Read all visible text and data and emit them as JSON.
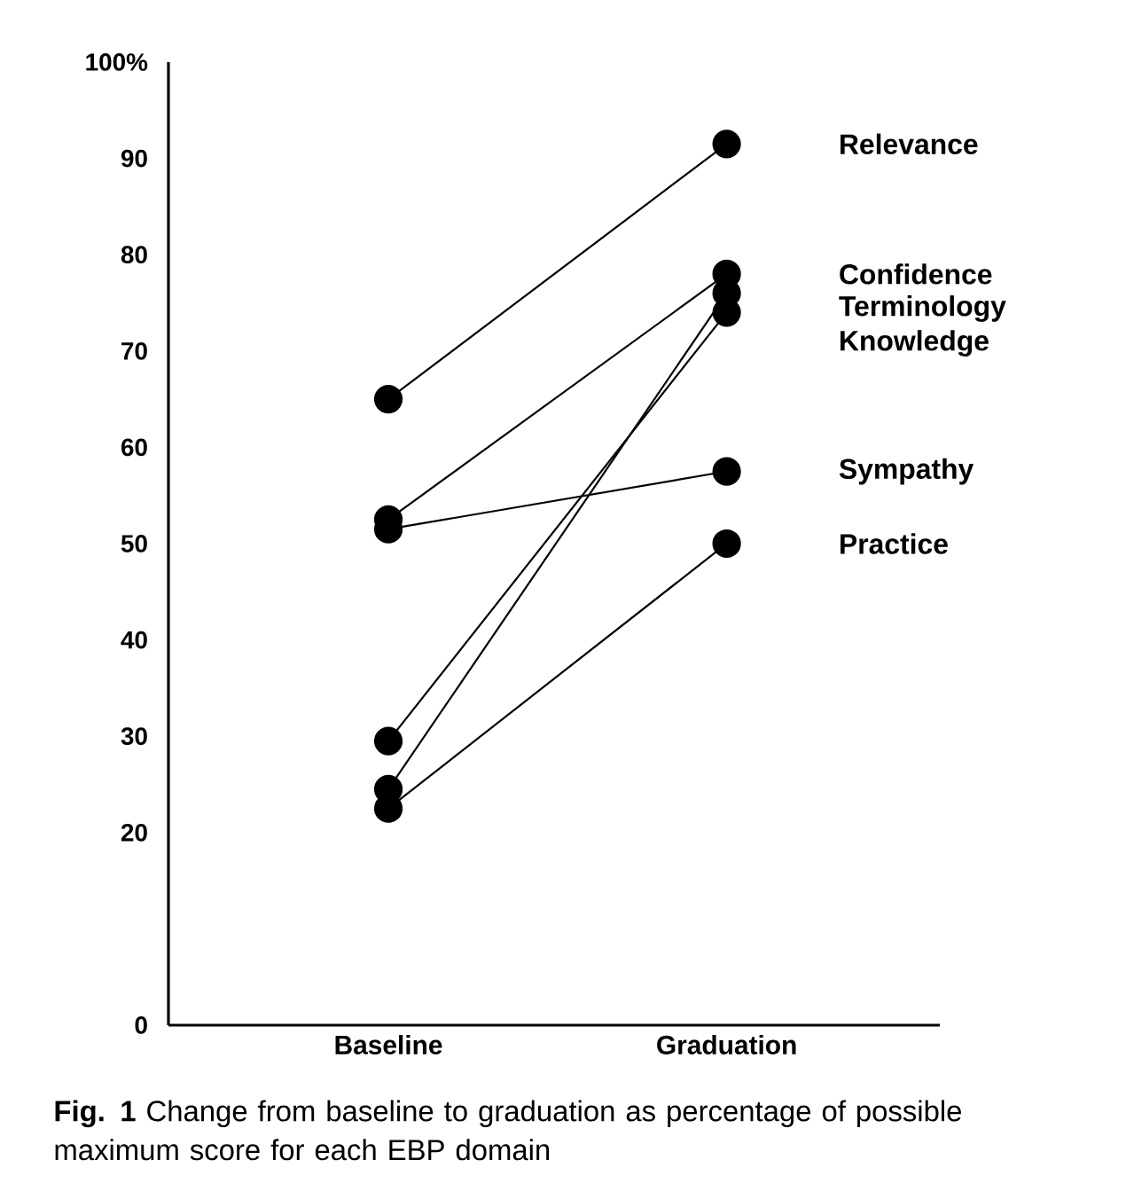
{
  "chart_data": {
    "type": "line",
    "categories": [
      "Baseline",
      "Graduation"
    ],
    "series": [
      {
        "name": "Relevance",
        "color": "#000000",
        "values": [
          65,
          91.5
        ]
      },
      {
        "name": "Confidence",
        "color": "#000000",
        "values": [
          52.5,
          78
        ]
      },
      {
        "name": "Terminology",
        "color": "#000000",
        "values": [
          24.5,
          76
        ]
      },
      {
        "name": "Knowledge",
        "color": "#000000",
        "values": [
          29.5,
          74
        ]
      },
      {
        "name": "Sympathy",
        "color": "#000000",
        "values": [
          51.5,
          57.5
        ]
      },
      {
        "name": "Practice",
        "color": "#000000",
        "values": [
          22.5,
          50
        ]
      }
    ],
    "ylim": [
      0,
      100
    ],
    "yticks": [
      0,
      20,
      30,
      40,
      50,
      60,
      70,
      80,
      90,
      {
        "value": 100,
        "label": "100%"
      }
    ],
    "marker": "circle",
    "line_style": "solid",
    "annotations": [
      "**Fig. 1** Change from baseline to graduation as percentage of possible maximum score for each EBP domain"
    ]
  }
}
